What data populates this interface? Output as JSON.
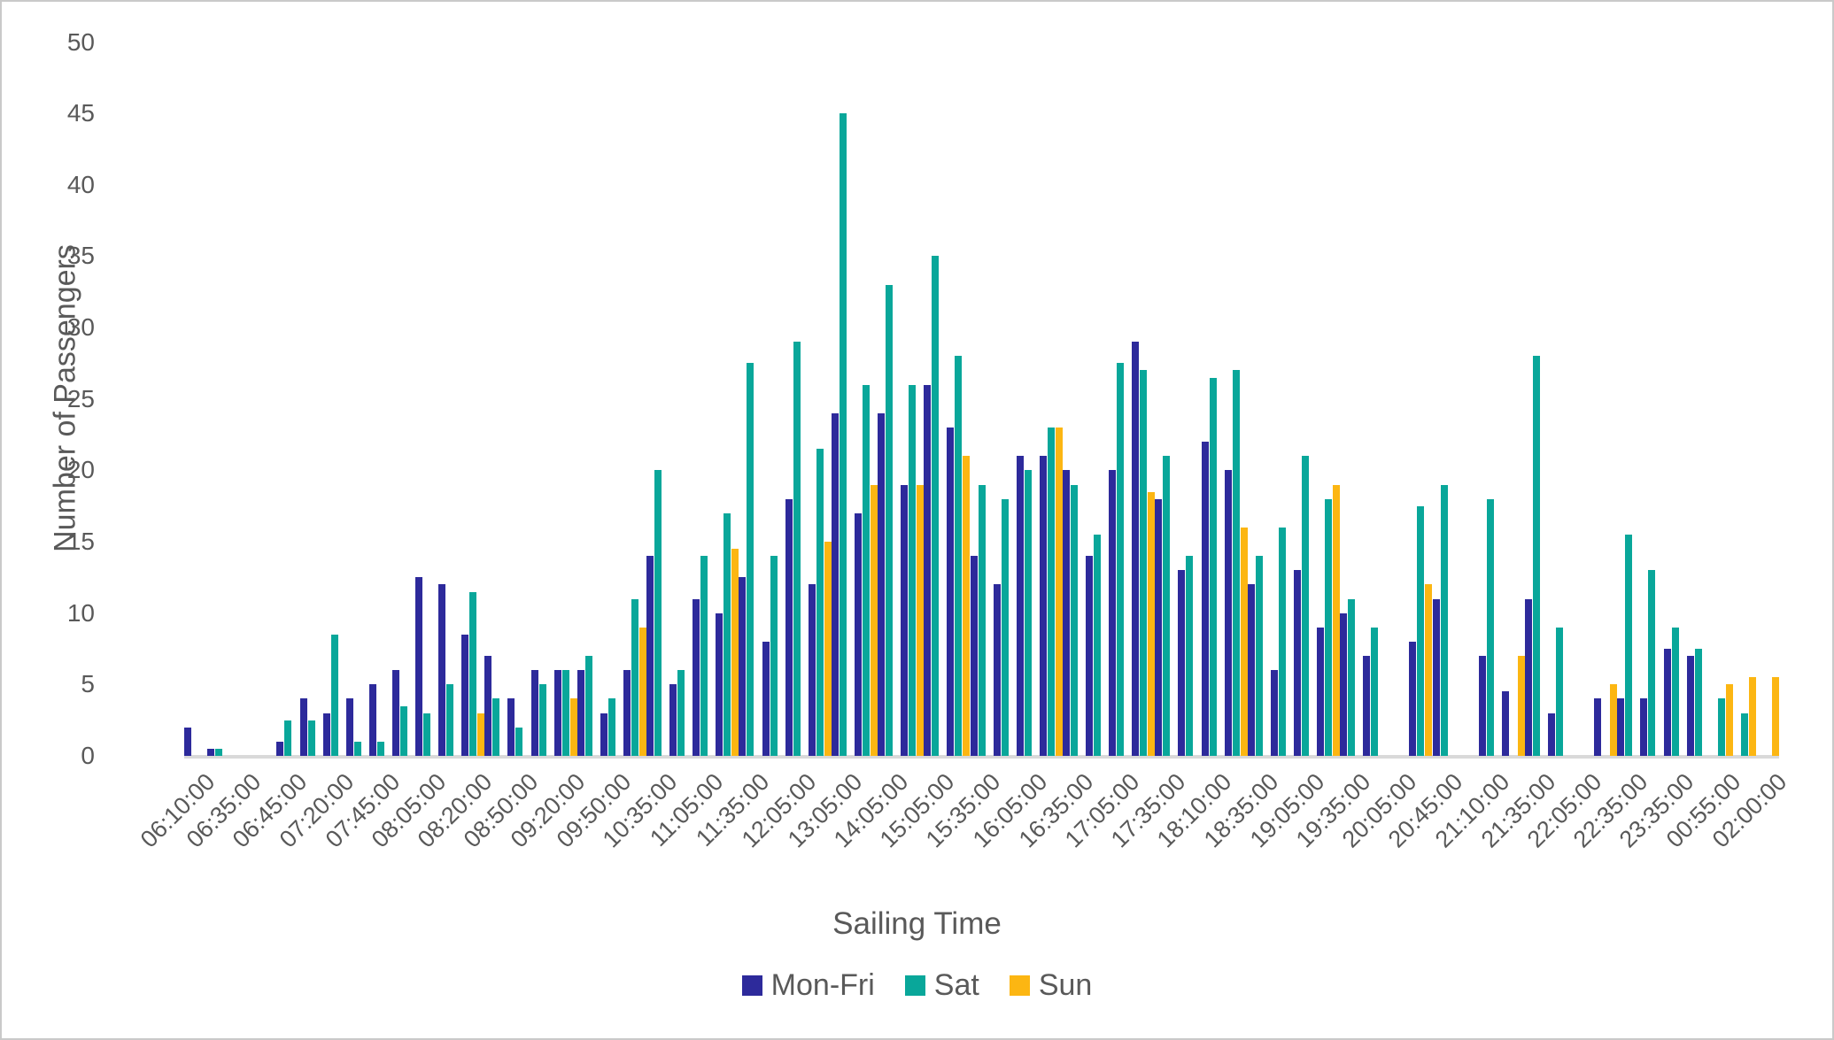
{
  "chart_data": {
    "type": "bar",
    "title": "",
    "xlabel": "Sailing Time",
    "ylabel": "Number of Passengers",
    "ylim": [
      0,
      50
    ],
    "ytick_step": 5,
    "y_tick_labels": [
      "0",
      "5",
      "10",
      "15",
      "20",
      "25",
      "30",
      "35",
      "40",
      "45",
      "50"
    ],
    "grid": false,
    "legend_position": "bottom-center",
    "note_label_interval": "x labels shown on every other category slot",
    "categories": [
      "06:10:00",
      "",
      "06:35:00",
      "",
      "06:45:00",
      "",
      "07:20:00",
      "",
      "07:45:00",
      "",
      "08:05:00",
      "",
      "08:20:00",
      "",
      "08:50:00",
      "",
      "09:20:00",
      "",
      "09:50:00",
      "",
      "10:35:00",
      "",
      "11:05:00",
      "",
      "11:35:00",
      "",
      "12:05:00",
      "",
      "13:05:00",
      "",
      "14:05:00",
      "",
      "15:05:00",
      "",
      "15:35:00",
      "",
      "16:05:00",
      "",
      "16:35:00",
      "",
      "17:05:00",
      "",
      "17:35:00",
      "",
      "18:10:00",
      "",
      "18:35:00",
      "",
      "19:05:00",
      "",
      "19:35:00",
      "",
      "20:05:00",
      "",
      "20:45:00",
      "",
      "21:10:00",
      "",
      "21:35:00",
      "",
      "22:05:00",
      "",
      "22:35:00",
      "",
      "23:35:00",
      "",
      "00:55:00",
      "",
      "02:00:00"
    ],
    "series": [
      {
        "name": "Mon-Fri",
        "color": "#2D2A9B",
        "values": [
          2,
          0.5,
          0,
          0,
          1,
          4,
          3,
          4,
          5,
          6,
          12.5,
          12,
          8.5,
          7,
          4,
          6,
          6,
          6,
          3,
          6,
          14,
          5,
          11,
          10,
          12.5,
          8,
          18,
          12,
          24,
          17,
          24,
          19,
          26,
          23,
          14,
          12,
          21,
          21,
          20,
          14,
          20,
          29,
          18,
          13,
          22,
          20,
          12,
          6,
          13,
          9,
          10,
          7,
          0,
          8,
          11,
          0,
          7,
          4.5,
          11,
          3,
          0,
          4,
          4,
          4,
          7.5,
          7,
          0,
          0,
          0
        ]
      },
      {
        "name": "Sat",
        "color": "#09A79A",
        "values": [
          0,
          0.5,
          0,
          0,
          2.5,
          2.5,
          8.5,
          1,
          1,
          3.5,
          3,
          5,
          11.5,
          4,
          2,
          5,
          6,
          7,
          4,
          11,
          20,
          6,
          14,
          17,
          27.5,
          14,
          29,
          21.5,
          45,
          26,
          33,
          26,
          35,
          28,
          19,
          18,
          20,
          23,
          19,
          15.5,
          27.5,
          27,
          21,
          14,
          26.5,
          27,
          14,
          16,
          21,
          18,
          11,
          9,
          0,
          17.5,
          19,
          0,
          18,
          0,
          28,
          9,
          0,
          0,
          15.5,
          13,
          9,
          7.5,
          4,
          3,
          0
        ]
      },
      {
        "name": "Sun",
        "color": "#FCB612",
        "values": [
          0,
          0,
          0,
          0,
          0,
          0,
          0,
          0,
          0,
          0,
          0,
          0,
          3,
          0,
          0,
          0,
          4,
          0,
          0,
          9,
          0,
          0,
          0,
          14.5,
          0,
          0,
          0,
          15,
          0,
          19,
          0,
          19,
          0,
          21,
          0,
          0,
          0,
          23,
          0,
          0,
          0,
          18.5,
          0,
          0,
          0,
          16,
          0,
          0,
          0,
          19,
          0,
          0,
          0,
          12,
          0,
          0,
          0,
          7,
          0,
          0,
          0,
          5,
          0,
          0,
          0,
          0,
          5,
          5.5,
          5.5
        ]
      }
    ]
  },
  "colors": {
    "axis_line": "#D9D9D9",
    "text": "#595959",
    "frame": "#C9C9C9",
    "background": "#FFFFFF"
  }
}
